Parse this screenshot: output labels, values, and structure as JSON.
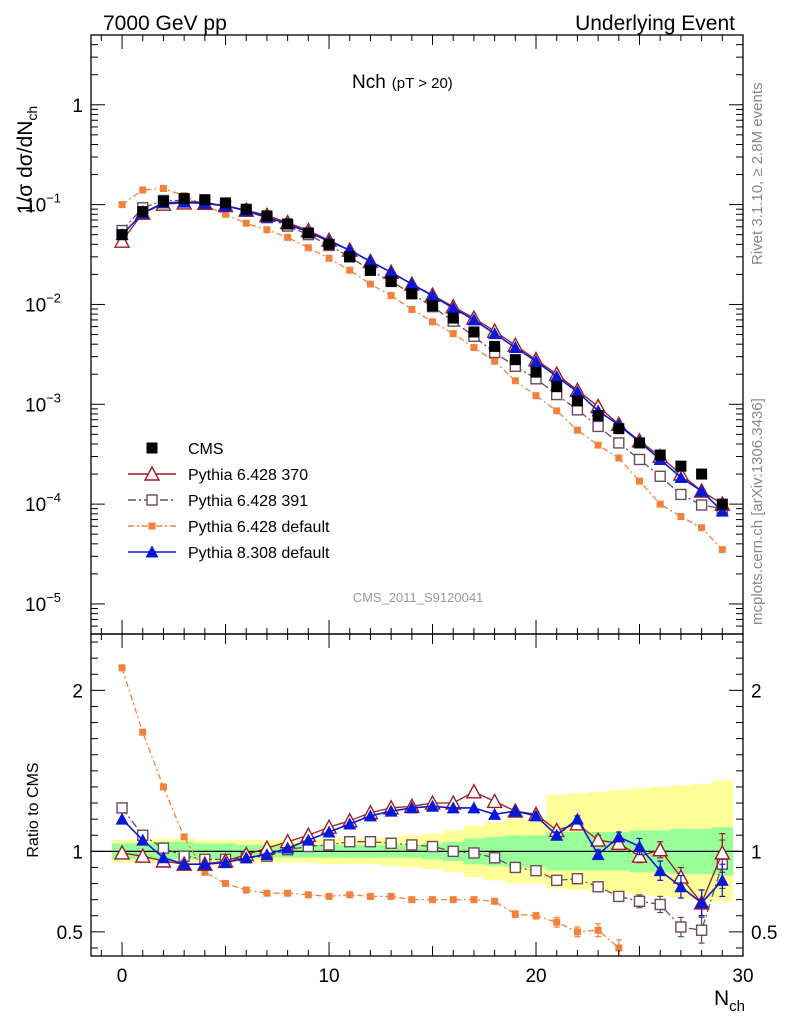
{
  "header": {
    "left": "7000 GeV pp",
    "right": "Underlying Event"
  },
  "side_labels": {
    "rivet": "Rivet 3.1.10, ≥ 2.8M events",
    "mcplots": "mcplots.cern.ch [arXiv:1306.3436]"
  },
  "watermark": "CMS_2011_S9120041",
  "colors": {
    "cms": "#000000",
    "p370": "#9b1c24",
    "p391": "#6b4a5a",
    "pdef": "#f3813b",
    "p8": "#0a18d8",
    "band_green": "#99ff99",
    "band_yellow": "#ffff99"
  },
  "chart_data": [
    {
      "type": "scatter",
      "panel": "main",
      "title": "Nch",
      "title_sub": "(pT > 20)",
      "ylabel": "1/σ dσ/dN",
      "ylabel_sub": "ch",
      "y_scale": "log",
      "ylim": [
        5e-06,
        5
      ],
      "xlim": [
        -1.5,
        30
      ],
      "y_tick_labels": [
        {
          "value": 1,
          "base": "1",
          "exp": ""
        },
        {
          "value": 0.1,
          "base": "10",
          "exp": "−1"
        },
        {
          "value": 0.01,
          "base": "10",
          "exp": "−2"
        },
        {
          "value": 0.001,
          "base": "10",
          "exp": "−3"
        },
        {
          "value": 0.0001,
          "base": "10",
          "exp": "−4"
        },
        {
          "value": 1e-05,
          "base": "10",
          "exp": "−5"
        }
      ],
      "x": [
        0,
        1,
        2,
        3,
        4,
        5,
        6,
        7,
        8,
        9,
        10,
        11,
        12,
        13,
        14,
        15,
        16,
        17,
        18,
        19,
        20,
        21,
        22,
        23,
        24,
        25,
        26,
        27,
        28,
        29
      ],
      "series": [
        {
          "key": "cms",
          "name": "CMS",
          "values": [
            0.05,
            0.085,
            0.108,
            0.115,
            0.112,
            0.104,
            0.09,
            0.077,
            0.064,
            0.052,
            0.04,
            0.03,
            0.022,
            0.017,
            0.0128,
            0.0097,
            0.0073,
            0.0053,
            0.0038,
            0.0028,
            0.0021,
            0.0015,
            0.00108,
            0.00077,
            0.00057,
            0.00041,
            0.00031,
            0.00024,
            0.0002,
            0.0001
          ]
        },
        {
          "key": "p370",
          "name": "Pythia 6.428 370",
          "values": [
            0.043,
            0.082,
            0.101,
            0.104,
            0.103,
            0.098,
            0.088,
            0.078,
            0.066,
            0.055,
            0.044,
            0.035,
            0.027,
            0.021,
            0.016,
            0.0124,
            0.0095,
            0.0073,
            0.0054,
            0.0039,
            0.0028,
            0.002,
            0.00138,
            0.00095,
            0.00063,
            0.00043,
            0.0003,
            0.0002,
            0.000135,
            0.0001
          ]
        },
        {
          "key": "p391",
          "name": "Pythia 6.428 391",
          "values": [
            0.055,
            0.093,
            0.11,
            0.11,
            0.105,
            0.098,
            0.086,
            0.074,
            0.061,
            0.05,
            0.039,
            0.03,
            0.022,
            0.017,
            0.0128,
            0.0095,
            0.0068,
            0.0048,
            0.0033,
            0.0024,
            0.0018,
            0.00125,
            0.00088,
            0.0006,
            0.00041,
            0.00028,
            0.00019,
            0.000125,
            9.8e-05,
            9e-05
          ]
        },
        {
          "key": "pdef",
          "name": "Pythia 6.428 default",
          "values": [
            0.1,
            0.14,
            0.145,
            0.123,
            0.098,
            0.08,
            0.065,
            0.056,
            0.047,
            0.037,
            0.029,
            0.022,
            0.016,
            0.0123,
            0.0089,
            0.0067,
            0.0051,
            0.0037,
            0.0027,
            0.00172,
            0.00122,
            0.00086,
            0.00055,
            0.00039,
            0.00029,
            0.00017,
            0.0001,
            7.5e-05,
            5.8e-05,
            3.5e-05
          ]
        },
        {
          "key": "p8",
          "name": "Pythia 8.308 default",
          "values": [
            0.05,
            0.082,
            0.104,
            0.106,
            0.103,
            0.097,
            0.087,
            0.075,
            0.064,
            0.053,
            0.043,
            0.035,
            0.027,
            0.021,
            0.016,
            0.0122,
            0.0092,
            0.007,
            0.0051,
            0.0037,
            0.0027,
            0.0019,
            0.00133,
            0.00086,
            0.00062,
            0.00042,
            0.00028,
            0.000185,
            0.000135,
            8.5e-05
          ]
        }
      ]
    },
    {
      "type": "scatter",
      "panel": "ratio",
      "ylabel": "Ratio to CMS",
      "xlabel": "N",
      "xlabel_sub": "ch",
      "ylim": [
        0.35,
        2.35
      ],
      "xlim": [
        -1.5,
        30
      ],
      "y_ticks": [
        0.5,
        1,
        2
      ],
      "y_tick_labels": [
        "0.5",
        "1",
        "2"
      ],
      "x_ticks": [
        0,
        10,
        20,
        30
      ],
      "x_tick_labels": [
        "0",
        "10",
        "20",
        "30"
      ],
      "x": [
        0,
        1,
        2,
        3,
        4,
        5,
        6,
        7,
        8,
        9,
        10,
        11,
        12,
        13,
        14,
        15,
        16,
        17,
        18,
        19,
        20,
        21,
        22,
        23,
        24,
        25,
        26,
        27,
        28,
        29
      ],
      "band_green": [
        [
          0.95,
          1.05
        ],
        [
          0.95,
          1.05
        ],
        [
          0.95,
          1.06
        ],
        [
          0.95,
          1.06
        ],
        [
          0.95,
          1.05
        ],
        [
          0.95,
          1.05
        ],
        [
          0.96,
          1.04
        ],
        [
          0.96,
          1.04
        ],
        [
          0.96,
          1.04
        ],
        [
          0.96,
          1.04
        ],
        [
          0.96,
          1.04
        ],
        [
          0.96,
          1.04
        ],
        [
          0.96,
          1.04
        ],
        [
          0.96,
          1.04
        ],
        [
          0.96,
          1.04
        ],
        [
          0.95,
          1.05
        ],
        [
          0.94,
          1.06
        ],
        [
          0.92,
          1.08
        ],
        [
          0.91,
          1.09
        ],
        [
          0.9,
          1.1
        ],
        [
          0.9,
          1.1
        ],
        [
          0.88,
          1.12
        ],
        [
          0.88,
          1.12
        ],
        [
          0.88,
          1.12
        ],
        [
          0.88,
          1.12
        ],
        [
          0.87,
          1.13
        ],
        [
          0.87,
          1.13
        ],
        [
          0.86,
          1.14
        ],
        [
          0.86,
          1.14
        ],
        [
          0.85,
          1.15
        ]
      ],
      "band_yellow": [
        [
          0.93,
          1.07
        ],
        [
          0.93,
          1.07
        ],
        [
          0.93,
          1.08
        ],
        [
          0.93,
          1.08
        ],
        [
          0.93,
          1.07
        ],
        [
          0.93,
          1.07
        ],
        [
          0.93,
          1.07
        ],
        [
          0.93,
          1.07
        ],
        [
          0.93,
          1.07
        ],
        [
          0.93,
          1.07
        ],
        [
          0.92,
          1.08
        ],
        [
          0.92,
          1.08
        ],
        [
          0.92,
          1.08
        ],
        [
          0.91,
          1.09
        ],
        [
          0.9,
          1.1
        ],
        [
          0.89,
          1.11
        ],
        [
          0.87,
          1.13
        ],
        [
          0.84,
          1.16
        ],
        [
          0.82,
          1.18
        ],
        [
          0.8,
          1.2
        ],
        [
          0.8,
          1.2
        ],
        [
          0.77,
          1.35
        ],
        [
          0.76,
          1.36
        ],
        [
          0.75,
          1.37
        ],
        [
          0.74,
          1.38
        ],
        [
          0.73,
          1.39
        ],
        [
          0.72,
          1.4
        ],
        [
          0.71,
          1.41
        ],
        [
          0.7,
          1.42
        ],
        [
          0.69,
          1.44
        ]
      ],
      "series": [
        {
          "key": "p370",
          "name": "Pythia 6.428 370",
          "values": [
            0.99,
            0.97,
            0.94,
            0.92,
            0.92,
            0.94,
            0.98,
            1.02,
            1.06,
            1.1,
            1.15,
            1.19,
            1.24,
            1.27,
            1.28,
            1.3,
            1.3,
            1.37,
            1.31,
            1.25,
            1.23,
            1.13,
            1.17,
            1.07,
            1.05,
            0.97,
            1.01,
            0.84,
            0.68,
            0.99
          ],
          "err": [
            0.01,
            0.01,
            0.01,
            0.01,
            0.01,
            0.01,
            0.01,
            0.01,
            0.01,
            0.01,
            0.01,
            0.01,
            0.01,
            0.01,
            0.01,
            0.01,
            0.01,
            0.01,
            0.01,
            0.01,
            0.02,
            0.02,
            0.02,
            0.03,
            0.03,
            0.04,
            0.05,
            0.06,
            0.08,
            0.12
          ]
        },
        {
          "key": "p391",
          "name": "Pythia 6.428 391",
          "values": [
            1.27,
            1.1,
            1.02,
            0.97,
            0.95,
            0.95,
            0.96,
            0.97,
            1.01,
            1.03,
            1.04,
            1.06,
            1.06,
            1.05,
            1.04,
            1.03,
            1.0,
            0.99,
            0.96,
            0.9,
            0.88,
            0.82,
            0.83,
            0.78,
            0.72,
            0.69,
            0.67,
            0.53,
            0.51,
            0.92
          ],
          "err": [
            0.01,
            0.01,
            0.01,
            0.01,
            0.01,
            0.01,
            0.01,
            0.01,
            0.01,
            0.01,
            0.01,
            0.01,
            0.01,
            0.01,
            0.01,
            0.01,
            0.01,
            0.01,
            0.01,
            0.01,
            0.02,
            0.02,
            0.02,
            0.03,
            0.03,
            0.04,
            0.05,
            0.06,
            0.08,
            0.15
          ]
        },
        {
          "key": "pdef",
          "name": "Pythia 6.428 default",
          "values": [
            2.14,
            1.74,
            1.4,
            1.09,
            0.87,
            0.8,
            0.76,
            0.74,
            0.74,
            0.73,
            0.72,
            0.73,
            0.72,
            0.72,
            0.7,
            0.7,
            0.7,
            0.7,
            0.69,
            0.61,
            0.6,
            0.56,
            0.5,
            0.51,
            0.4
          ],
          "err": [
            0.01,
            0.01,
            0.01,
            0.01,
            0.01,
            0.01,
            0.01,
            0.01,
            0.01,
            0.01,
            0.01,
            0.01,
            0.01,
            0.01,
            0.01,
            0.01,
            0.01,
            0.01,
            0.01,
            0.02,
            0.02,
            0.03,
            0.03,
            0.04,
            0.05
          ]
        },
        {
          "key": "p8",
          "name": "Pythia 8.308 default",
          "values": [
            1.2,
            1.07,
            0.96,
            0.92,
            0.92,
            0.93,
            0.96,
            0.98,
            1.02,
            1.07,
            1.12,
            1.17,
            1.22,
            1.25,
            1.27,
            1.28,
            1.27,
            1.27,
            1.23,
            1.25,
            1.22,
            1.1,
            1.2,
            0.98,
            1.09,
            1.03,
            0.88,
            0.78,
            0.68,
            0.82
          ],
          "err": [
            0.01,
            0.01,
            0.01,
            0.01,
            0.01,
            0.01,
            0.01,
            0.01,
            0.01,
            0.01,
            0.01,
            0.01,
            0.01,
            0.01,
            0.01,
            0.01,
            0.01,
            0.01,
            0.01,
            0.01,
            0.02,
            0.02,
            0.02,
            0.03,
            0.03,
            0.05,
            0.06,
            0.07,
            0.08,
            0.1
          ]
        }
      ]
    }
  ]
}
